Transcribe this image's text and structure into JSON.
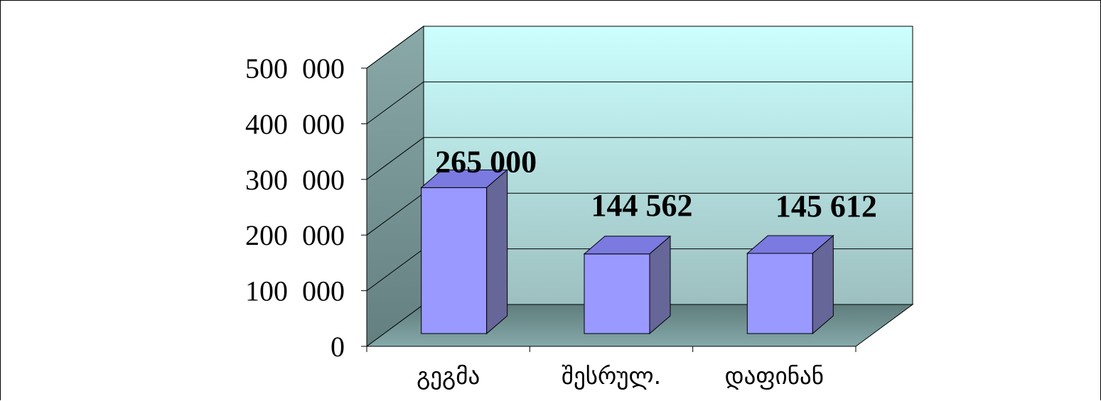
{
  "chart_data": {
    "type": "bar",
    "style": "3d-column",
    "categories": [
      "გეგმა",
      "შესრულ.",
      "დაფინან"
    ],
    "values": [
      265000,
      144562,
      145612
    ],
    "data_labels": [
      "265 000",
      "144 562",
      "145 612"
    ],
    "title": "",
    "xlabel": "",
    "ylabel": "",
    "ylim": [
      0,
      500000
    ],
    "yticks": [
      0,
      100000,
      200000,
      300000,
      400000,
      500000
    ],
    "ytick_labels": [
      "0",
      "100  000",
      "200  000",
      "300  000",
      "400  000",
      "500  000"
    ],
    "grid": true,
    "legend": "none",
    "colors": {
      "bar_front": "#9999ff",
      "bar_top": "#7a7ae0",
      "bar_side": "#666699",
      "back_wall_top": "#ccffff",
      "back_wall_bottom": "#9dbfbf",
      "side_wall_top": "#8aa9a9",
      "side_wall_bottom": "#647f7f",
      "floor": "#6e9090"
    }
  }
}
